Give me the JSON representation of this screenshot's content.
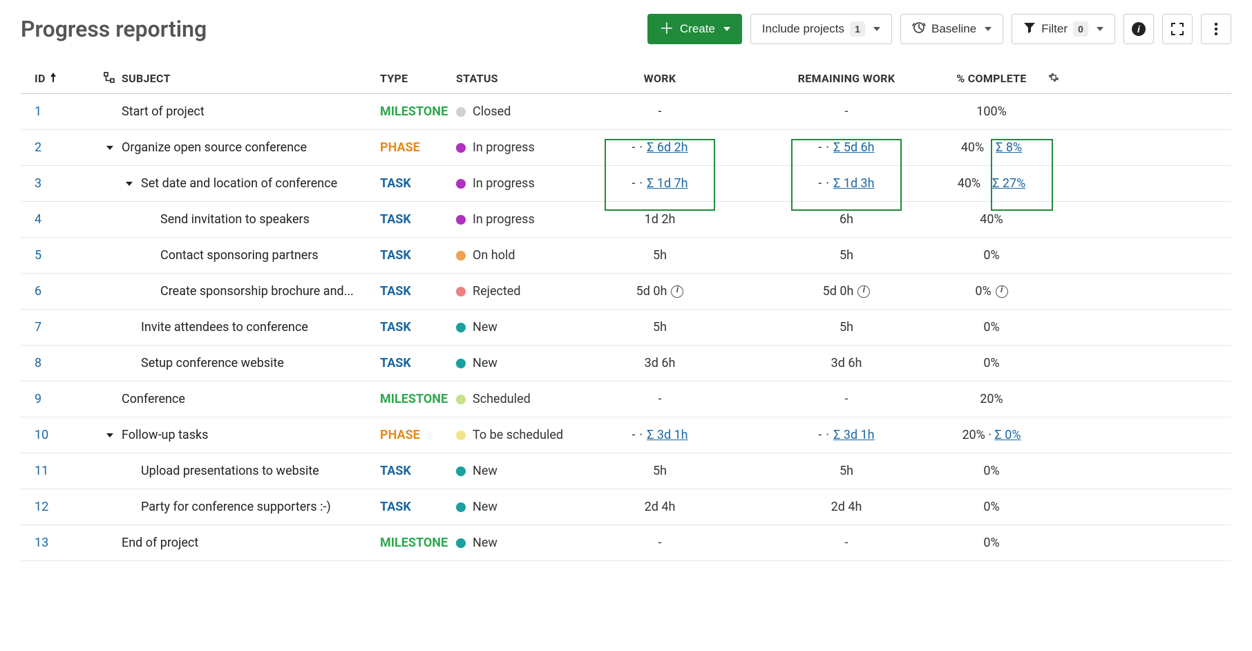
{
  "page": {
    "title": "Progress reporting"
  },
  "toolbar": {
    "create_label": "Create",
    "include_projects_label": "Include projects",
    "include_projects_count": "1",
    "baseline_label": "Baseline",
    "filter_label": "Filter",
    "filter_count": "0"
  },
  "columns": {
    "id": "ID",
    "subject": "SUBJECT",
    "type": "TYPE",
    "status": "STATUS",
    "work": "WORK",
    "remaining": "REMAINING WORK",
    "pct": "% COMPLETE"
  },
  "type_labels": {
    "MILESTONE": "MILESTONE",
    "PHASE": "PHASE",
    "TASK": "TASK"
  },
  "status_labels": {
    "closed": "Closed",
    "in_progress": "In progress",
    "on_hold": "On hold",
    "rejected": "Rejected",
    "new": "New",
    "scheduled": "Scheduled",
    "to_be_scheduled": "To be scheduled"
  },
  "status_colors": {
    "closed": "#d0d0d0",
    "in_progress": "#b030c0",
    "on_hold": "#f0a050",
    "rejected": "#f08080",
    "new": "#1aa0a0",
    "scheduled": "#c8e08a",
    "to_be_scheduled": "#f5e58a"
  },
  "type_colors": {
    "MILESTONE": "#2fa84f",
    "PHASE": "#e58b1e",
    "TASK": "#1a67a3"
  },
  "highlight_color": "#1f8b3b",
  "rows": [
    {
      "id": "1",
      "indent": 1,
      "expandable": false,
      "subject": "Start of project",
      "type": "MILESTONE",
      "status": "closed",
      "work": {
        "plain": "-"
      },
      "remaining": {
        "plain": "-"
      },
      "pct": {
        "plain": "100%"
      }
    },
    {
      "id": "2",
      "indent": 1,
      "expandable": true,
      "subject": "Organize open source conference",
      "type": "PHASE",
      "status": "in_progress",
      "work": {
        "dash": true,
        "sigma": "Σ 6d 2h"
      },
      "remaining": {
        "dash": true,
        "sigma": "Σ 5d 6h"
      },
      "pct": {
        "plain": "40%",
        "sigma": "Σ 8%",
        "pct_highlight": true
      },
      "work_highlight": true,
      "rem_highlight": true
    },
    {
      "id": "3",
      "indent": 2,
      "expandable": true,
      "subject": "Set date and location of conference",
      "type": "TASK",
      "status": "in_progress",
      "work": {
        "dash": true,
        "sigma": "Σ 1d 7h"
      },
      "remaining": {
        "dash": true,
        "sigma": "Σ 1d 3h"
      },
      "pct": {
        "plain": "40%",
        "sigma": "Σ 27%",
        "pct_highlight": true
      }
    },
    {
      "id": "4",
      "indent": 3,
      "expandable": false,
      "subject": "Send invitation to speakers",
      "type": "TASK",
      "status": "in_progress",
      "work": {
        "plain": "1d 2h"
      },
      "remaining": {
        "plain": "6h"
      },
      "pct": {
        "plain": "40%"
      }
    },
    {
      "id": "5",
      "indent": 3,
      "expandable": false,
      "subject": "Contact sponsoring partners",
      "type": "TASK",
      "status": "on_hold",
      "work": {
        "plain": "5h"
      },
      "remaining": {
        "plain": "5h"
      },
      "pct": {
        "plain": "0%"
      }
    },
    {
      "id": "6",
      "indent": 3,
      "expandable": false,
      "subject": "Create sponsorship brochure and...",
      "type": "TASK",
      "status": "rejected",
      "work": {
        "plain": "5d 0h",
        "info": true
      },
      "remaining": {
        "plain": "5d 0h",
        "info": true
      },
      "pct": {
        "plain": "0%",
        "info": true
      }
    },
    {
      "id": "7",
      "indent": 2,
      "expandable": false,
      "subject": "Invite attendees to conference",
      "type": "TASK",
      "status": "new",
      "work": {
        "plain": "5h"
      },
      "remaining": {
        "plain": "5h"
      },
      "pct": {
        "plain": "0%"
      }
    },
    {
      "id": "8",
      "indent": 2,
      "expandable": false,
      "subject": "Setup conference website",
      "type": "TASK",
      "status": "new",
      "work": {
        "plain": "3d 6h"
      },
      "remaining": {
        "plain": "3d 6h"
      },
      "pct": {
        "plain": "0%"
      }
    },
    {
      "id": "9",
      "indent": 1,
      "expandable": false,
      "subject": "Conference",
      "type": "MILESTONE",
      "status": "scheduled",
      "work": {
        "plain": "-"
      },
      "remaining": {
        "plain": "-"
      },
      "pct": {
        "plain": "20%"
      }
    },
    {
      "id": "10",
      "indent": 1,
      "expandable": true,
      "subject": "Follow-up tasks",
      "type": "PHASE",
      "status": "to_be_scheduled",
      "work": {
        "dash": true,
        "sigma": "Σ 3d 1h"
      },
      "remaining": {
        "dash": true,
        "sigma": "Σ 3d 1h"
      },
      "pct": {
        "plain": "20%",
        "dot_sigma": "Σ 0%"
      }
    },
    {
      "id": "11",
      "indent": 2,
      "expandable": false,
      "subject": "Upload presentations to website",
      "type": "TASK",
      "status": "new",
      "work": {
        "plain": "5h"
      },
      "remaining": {
        "plain": "5h"
      },
      "pct": {
        "plain": "0%"
      }
    },
    {
      "id": "12",
      "indent": 2,
      "expandable": false,
      "subject": "Party for conference supporters :-)",
      "type": "TASK",
      "status": "new",
      "work": {
        "plain": "2d 4h"
      },
      "remaining": {
        "plain": "2d 4h"
      },
      "pct": {
        "plain": "0%"
      }
    },
    {
      "id": "13",
      "indent": 1,
      "expandable": false,
      "subject": "End of project",
      "type": "MILESTONE",
      "status": "new",
      "work": {
        "plain": "-"
      },
      "remaining": {
        "plain": "-"
      },
      "pct": {
        "plain": "0%"
      }
    }
  ]
}
